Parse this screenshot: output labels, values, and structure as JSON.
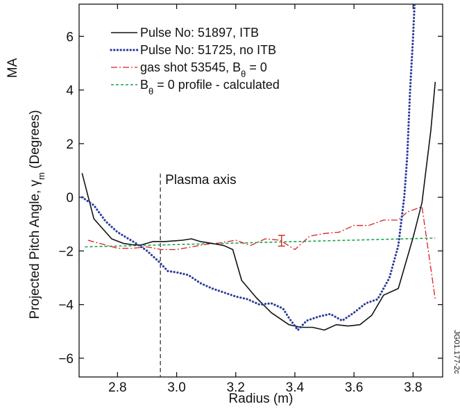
{
  "chart_data": {
    "type": "line",
    "corner_label": "MA",
    "xlabel": "Radius (m)",
    "ylabel": {
      "prefix": "Projected Pitch Angle, γ",
      "sub": "m",
      "suffix": " (Degrees)"
    },
    "figure_id": "JG01.177-2c",
    "xlim": [
      2.67,
      3.9
    ],
    "ylim": [
      -6.7,
      7.2
    ],
    "x_ticks": [
      2.8,
      3.0,
      3.2,
      3.4,
      3.6,
      3.8
    ],
    "x_tick_labels": [
      "2.8",
      "3.0",
      "3.2",
      "3.4",
      "3.6",
      "3.8"
    ],
    "y_ticks": [
      -6,
      -4,
      -2,
      0,
      2,
      4,
      6
    ],
    "y_tick_labels": [
      "−6",
      "−4",
      "−2",
      "0",
      "2",
      "4",
      "6"
    ],
    "grid": false,
    "legend_position": "top-left",
    "colors": {
      "itb": "#111111",
      "no_itb": "#2a3d99",
      "gas_shot": "#d42020",
      "calculated": "#1aa34a"
    },
    "series": [
      {
        "key": "itb",
        "legend": [
          {
            "t": "Pulse No: 51897, ITB"
          }
        ],
        "style": "solid",
        "points": [
          [
            2.68,
            0.9
          ],
          [
            2.72,
            -0.8
          ],
          [
            2.78,
            -1.55
          ],
          [
            2.82,
            -1.72
          ],
          [
            2.85,
            -1.77
          ],
          [
            2.88,
            -1.78
          ],
          [
            2.92,
            -1.65
          ],
          [
            2.96,
            -1.65
          ],
          [
            3.0,
            -1.62
          ],
          [
            3.02,
            -1.6
          ],
          [
            3.05,
            -1.55
          ],
          [
            3.08,
            -1.65
          ],
          [
            3.12,
            -1.72
          ],
          [
            3.16,
            -1.8
          ],
          [
            3.19,
            -1.95
          ],
          [
            3.22,
            -3.1
          ],
          [
            3.27,
            -3.75
          ],
          [
            3.32,
            -4.3
          ],
          [
            3.38,
            -4.75
          ],
          [
            3.42,
            -4.85
          ],
          [
            3.46,
            -4.85
          ],
          [
            3.5,
            -4.95
          ],
          [
            3.54,
            -4.75
          ],
          [
            3.58,
            -4.8
          ],
          [
            3.62,
            -4.75
          ],
          [
            3.66,
            -4.4
          ],
          [
            3.7,
            -3.65
          ],
          [
            3.73,
            -3.5
          ],
          [
            3.75,
            -3.4
          ],
          [
            3.8,
            -1.5
          ],
          [
            3.83,
            -0.2
          ],
          [
            3.86,
            2.5
          ],
          [
            3.875,
            4.3
          ]
        ]
      },
      {
        "key": "no_itb",
        "legend": [
          {
            "t": "Pulse No: 51725, no ITB"
          }
        ],
        "style": "dotted",
        "points": [
          [
            2.68,
            0.0
          ],
          [
            2.72,
            -0.3
          ],
          [
            2.76,
            -0.9
          ],
          [
            2.8,
            -1.3
          ],
          [
            2.86,
            -1.7
          ],
          [
            2.9,
            -2.0
          ],
          [
            2.94,
            -2.4
          ],
          [
            2.97,
            -2.75
          ],
          [
            3.0,
            -2.8
          ],
          [
            3.04,
            -2.9
          ],
          [
            3.08,
            -3.2
          ],
          [
            3.12,
            -3.4
          ],
          [
            3.16,
            -3.55
          ],
          [
            3.2,
            -3.7
          ],
          [
            3.24,
            -3.8
          ],
          [
            3.28,
            -4.0
          ],
          [
            3.32,
            -3.95
          ],
          [
            3.36,
            -4.15
          ],
          [
            3.38,
            -4.5
          ],
          [
            3.41,
            -4.95
          ],
          [
            3.44,
            -4.6
          ],
          [
            3.48,
            -4.45
          ],
          [
            3.52,
            -4.35
          ],
          [
            3.56,
            -4.6
          ],
          [
            3.6,
            -4.3
          ],
          [
            3.64,
            -3.95
          ],
          [
            3.68,
            -3.8
          ],
          [
            3.72,
            -3.0
          ],
          [
            3.75,
            -1.8
          ],
          [
            3.77,
            0.0
          ],
          [
            3.78,
            1.5
          ],
          [
            3.79,
            4.0
          ],
          [
            3.8,
            6.0
          ],
          [
            3.805,
            7.2
          ]
        ]
      },
      {
        "key": "gas_shot",
        "legend": [
          {
            "t": "gas shot 53545, B"
          },
          {
            "t": "θ",
            "sub": true
          },
          {
            "t": " = 0"
          }
        ],
        "style": "dashdot",
        "points": [
          [
            2.7,
            -1.6
          ],
          [
            2.75,
            -1.75
          ],
          [
            2.8,
            -1.9
          ],
          [
            2.85,
            -1.9
          ],
          [
            2.9,
            -1.85
          ],
          [
            2.95,
            -1.95
          ],
          [
            3.0,
            -1.95
          ],
          [
            3.05,
            -1.85
          ],
          [
            3.1,
            -1.75
          ],
          [
            3.15,
            -1.7
          ],
          [
            3.2,
            -1.6
          ],
          [
            3.25,
            -1.8
          ],
          [
            3.3,
            -1.55
          ],
          [
            3.35,
            -1.6
          ],
          [
            3.4,
            -1.95
          ],
          [
            3.45,
            -1.45
          ],
          [
            3.5,
            -1.35
          ],
          [
            3.55,
            -1.3
          ],
          [
            3.6,
            -1.05
          ],
          [
            3.65,
            -1.05
          ],
          [
            3.7,
            -0.85
          ],
          [
            3.75,
            -0.85
          ],
          [
            3.78,
            -0.55
          ],
          [
            3.83,
            -0.35
          ],
          [
            3.875,
            -3.8
          ]
        ]
      },
      {
        "key": "calculated",
        "legend": [
          {
            "t": "B"
          },
          {
            "t": "θ",
            "sub": true
          },
          {
            "t": " = 0 profile - calculated"
          }
        ],
        "style": "dashed",
        "points": [
          [
            2.69,
            -1.85
          ],
          [
            3.875,
            -1.52
          ]
        ]
      }
    ],
    "error_bar": {
      "x": 3.355,
      "y": -1.62,
      "lo": -1.82,
      "hi": -1.42
    },
    "annotation": {
      "label": "Plasma axis",
      "x": 2.945
    }
  }
}
